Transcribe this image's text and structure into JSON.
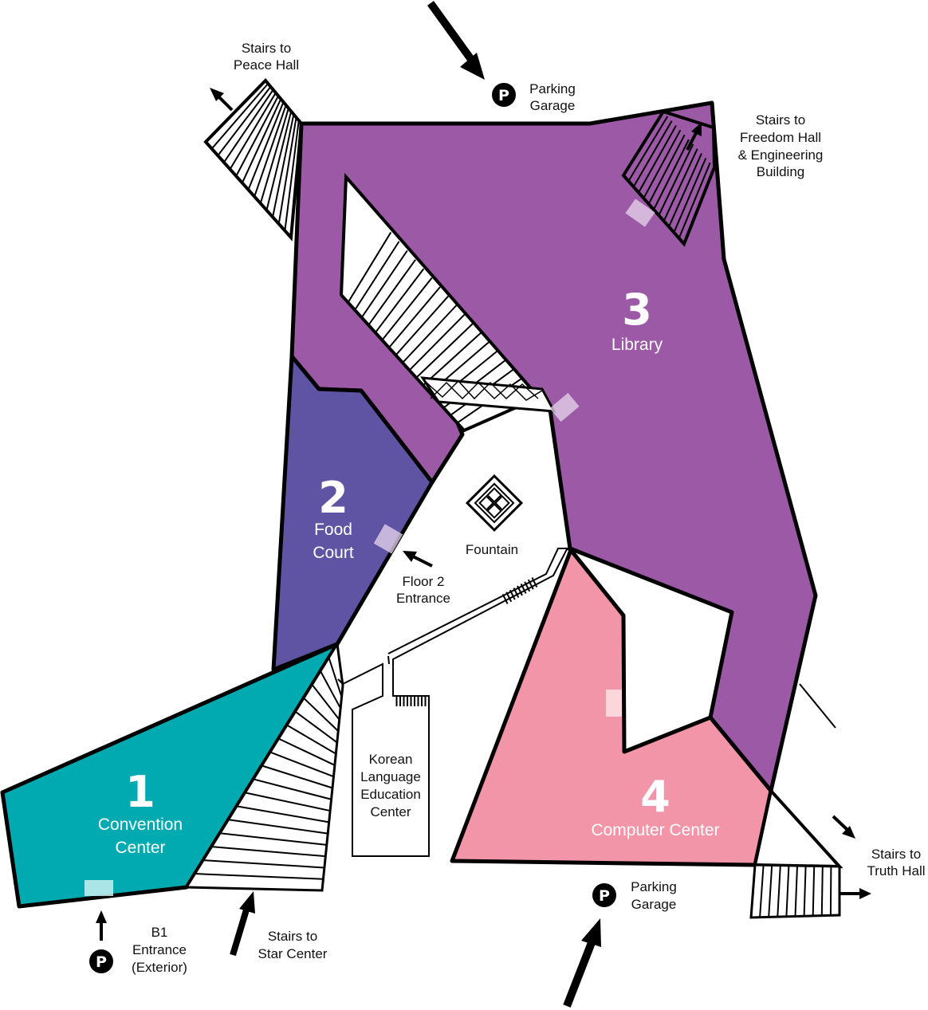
{
  "colors": {
    "convention": "#00aab0",
    "food": "#5f53a3",
    "library": "#9c59a5",
    "computer": "#f295a8",
    "outline": "#000000",
    "door_light": "#e8d7ee"
  },
  "zones": {
    "z1": {
      "number": "1",
      "name_line1": "Convention",
      "name_line2": "Center"
    },
    "z2": {
      "number": "2",
      "name_line1": "Food",
      "name_line2": "Court"
    },
    "z3": {
      "number": "3",
      "name_line1": "Library"
    },
    "z4": {
      "number": "4",
      "name_line1": "Computer Center"
    }
  },
  "labels": {
    "peace": {
      "line1": "Stairs to",
      "line2": "Peace Hall"
    },
    "parking_top": {
      "line1": "Parking",
      "line2": "Garage"
    },
    "freedom": {
      "line1": "Stairs to",
      "line2": "Freedom Hall",
      "line3": "& Engineering",
      "line4": "Building"
    },
    "fountain": "Fountain",
    "floor2": {
      "line1": "Floor 2",
      "line2": "Entrance"
    },
    "klec": {
      "line1": "Korean",
      "line2": "Language",
      "line3": "Education",
      "line4": "Center"
    },
    "truth": {
      "line1": "Stairs to",
      "line2": "Truth Hall"
    },
    "parking_bottom": {
      "line1": "Parking",
      "line2": "Garage"
    },
    "b1": {
      "line1": "B1",
      "line2": "Entrance",
      "line3": "(Exterior)"
    },
    "star": {
      "line1": "Stairs to",
      "line2": "Star Center"
    },
    "parking_symbol": "P"
  },
  "icons": [
    "parking-icon",
    "fountain-icon",
    "arrow-icon",
    "stairs-icon",
    "door-icon"
  ]
}
